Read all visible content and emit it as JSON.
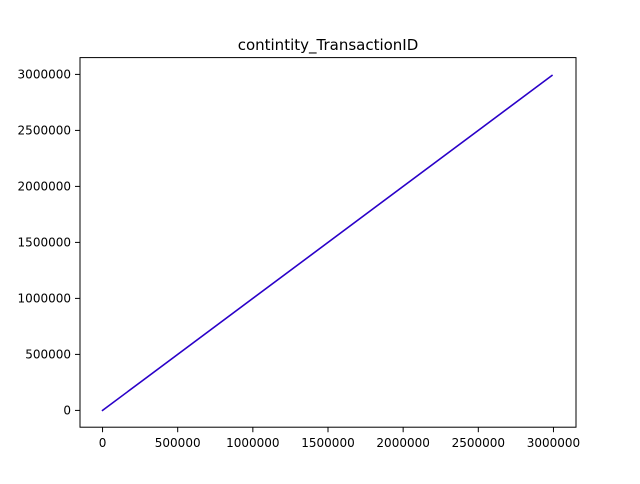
{
  "chart_data": {
    "type": "line",
    "title": "contintity_TransactionID",
    "xlabel": "",
    "ylabel": "",
    "xlim": [
      -150000,
      3150000
    ],
    "ylim": [
      -150000,
      3150000
    ],
    "xticks": [
      0,
      500000,
      1000000,
      1500000,
      2000000,
      2500000,
      3000000
    ],
    "yticks": [
      0,
      500000,
      1000000,
      1500000,
      2000000,
      2500000,
      3000000
    ],
    "xtick_labels": [
      "0",
      "500000",
      "1000000",
      "1500000",
      "2000000",
      "2500000",
      "3000000"
    ],
    "ytick_labels": [
      "0",
      "500000",
      "1000000",
      "1500000",
      "2000000",
      "2500000",
      "3000000"
    ],
    "grid": false,
    "series": [
      {
        "color": "#2a00c8",
        "x": [
          0,
          2990000
        ],
        "y": [
          0,
          2990000
        ]
      }
    ]
  }
}
